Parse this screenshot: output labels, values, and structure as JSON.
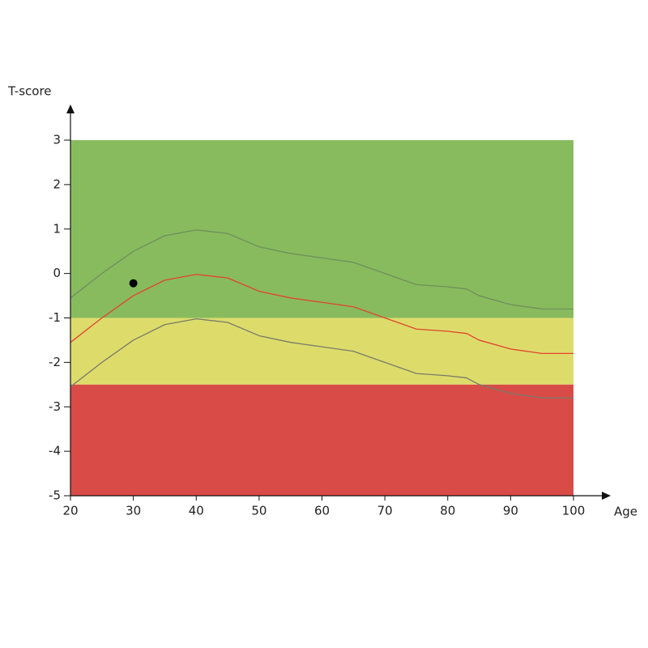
{
  "chart_data": {
    "type": "line",
    "y_label": "T-score",
    "x_label": "Age",
    "xlim": [
      20,
      100
    ],
    "ylim": [
      -5,
      3
    ],
    "xticks": [
      20,
      30,
      40,
      50,
      60,
      70,
      80,
      90,
      100
    ],
    "yticks": [
      -5,
      -4,
      -3,
      -2,
      -1,
      0,
      1,
      2,
      3
    ],
    "bands": [
      {
        "from": -1,
        "to": 3,
        "color": "#88bb5e"
      },
      {
        "from": -2.5,
        "to": -1,
        "color": "#dddc6b"
      },
      {
        "from": -5,
        "to": -2.5,
        "color": "#d94b47"
      }
    ],
    "x": [
      20,
      25,
      30,
      35,
      40,
      45,
      50,
      55,
      60,
      65,
      70,
      75,
      80,
      83,
      85,
      90,
      95,
      100
    ],
    "series": [
      {
        "color": "#6f8f5c",
        "values": [
          -0.55,
          0,
          0.5,
          0.85,
          0.98,
          0.9,
          0.6,
          0.45,
          0.35,
          0.25,
          0,
          -0.25,
          -0.3,
          -0.35,
          -0.5,
          -0.7,
          -0.8,
          -0.8
        ]
      },
      {
        "color": "#e0442e",
        "values": [
          -1.55,
          -1.0,
          -0.5,
          -0.15,
          -0.02,
          -0.1,
          -0.4,
          -0.55,
          -0.65,
          -0.75,
          -1.0,
          -1.25,
          -1.3,
          -1.35,
          -1.5,
          -1.7,
          -1.8,
          -1.8
        ]
      },
      {
        "color": "#7a7a6a",
        "values": [
          -2.55,
          -2.0,
          -1.5,
          -1.15,
          -1.02,
          -1.1,
          -1.4,
          -1.55,
          -1.65,
          -1.75,
          -2.0,
          -2.25,
          -2.3,
          -2.35,
          -2.5,
          -2.7,
          -2.8,
          -2.8
        ]
      }
    ],
    "points": [
      {
        "x": 30,
        "y": -0.22,
        "color": "#000000"
      }
    ]
  }
}
